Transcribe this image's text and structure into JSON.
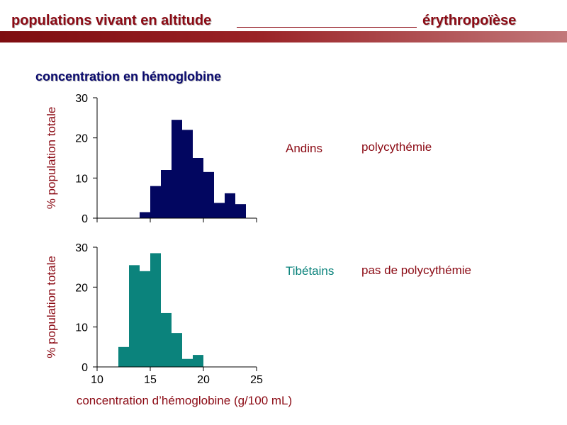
{
  "header": {
    "left_title": "populations vivant en altitude",
    "right_title": "érythropoïèse"
  },
  "section_title": "concentration en hémoglobine",
  "colors": {
    "header": "#8b0a14",
    "andins": "#020660",
    "tibetains": "#0b837c",
    "axis_text": "#8b0a14"
  },
  "groups": [
    {
      "label": "Andins",
      "note": "polycythémie"
    },
    {
      "label": "Tibétains",
      "note": "pas de polycythémie"
    }
  ],
  "chart_data": [
    {
      "type": "bar",
      "title": "Andins",
      "ylabel": "% population totale",
      "xlabel": "",
      "ylim": [
        0,
        30
      ],
      "xlim": [
        10,
        25
      ],
      "yticks": [
        0,
        10,
        20,
        30
      ],
      "bin_width": 1,
      "x": [
        14.5,
        15.5,
        16.5,
        17.5,
        18.5,
        19.5,
        20.5,
        21.5,
        22.5,
        23.5
      ],
      "values": [
        1.5,
        8,
        12,
        24.5,
        22,
        15,
        11.5,
        3.8,
        6.2,
        3.5
      ],
      "grid": false
    },
    {
      "type": "bar",
      "title": "Tibétains",
      "ylabel": "% population totale",
      "xlabel": "concentration d’hémoglobine (g/100 mL)",
      "ylim": [
        0,
        30
      ],
      "xlim": [
        10,
        25
      ],
      "yticks": [
        0,
        10,
        20,
        30
      ],
      "xticks": [
        10,
        15,
        20,
        25
      ],
      "bin_width": 1,
      "x": [
        12.5,
        13.5,
        14.5,
        15.5,
        16.5,
        17.5,
        18.5,
        19.5
      ],
      "values": [
        5,
        25.5,
        24,
        28.5,
        13.5,
        8.5,
        2,
        3
      ],
      "grid": false
    }
  ]
}
